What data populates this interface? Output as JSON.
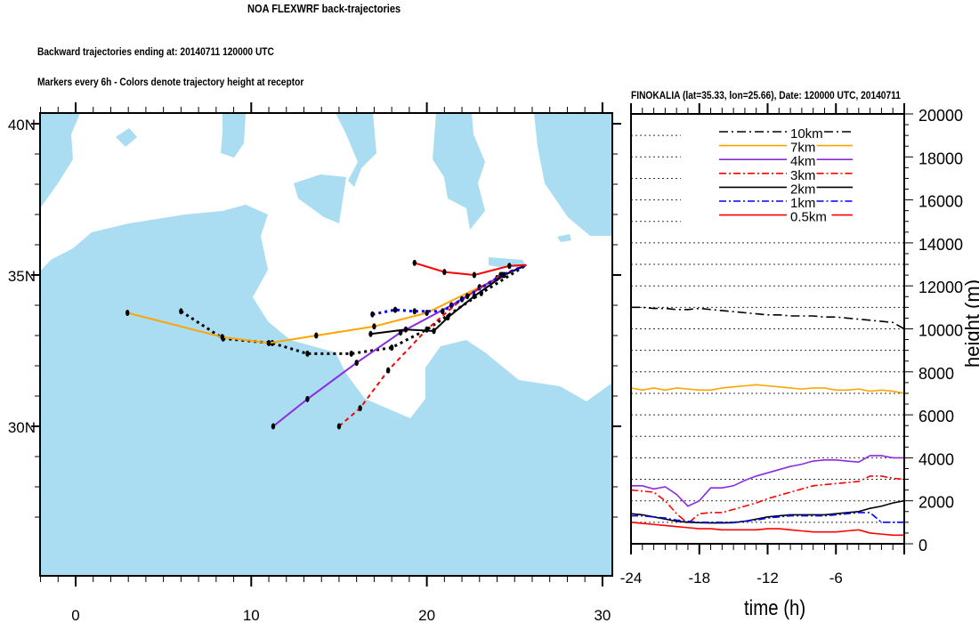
{
  "title": "NOA FLEXWRF back-trajectories",
  "subtitle1": "Backward trajectories ending at: 20140711  120000 UTC",
  "subtitle2": "Markers every 6h - Colors denote trajectory height at receptor",
  "chart_data": [
    {
      "type": "line",
      "name": "trajectory-map",
      "xlim": [
        -2,
        30.5
      ],
      "ylim": [
        26,
        40.3
      ],
      "x_ticks": [
        {
          "v": 0,
          "label": "0"
        },
        {
          "v": 10,
          "label": "10"
        },
        {
          "v": 20,
          "label": "20"
        },
        {
          "v": 30,
          "label": "30"
        }
      ],
      "y_ticks": [
        {
          "v": 40,
          "label": "40N"
        },
        {
          "v": 35,
          "label": "35N"
        },
        {
          "v": 30,
          "label": "30N"
        }
      ],
      "receptor": [
        25.66,
        35.33
      ],
      "series": [
        {
          "name": "10km",
          "color": "#000000",
          "style": "dotted",
          "points": [
            [
              6.0,
              33.8
            ],
            [
              8.4,
              32.9
            ],
            [
              11.2,
              32.75
            ],
            [
              13.2,
              32.4
            ],
            [
              15.7,
              32.4
            ],
            [
              18.0,
              32.6
            ],
            [
              20.0,
              33.2
            ],
            [
              23.1,
              34.4
            ],
            [
              25.66,
              35.33
            ]
          ]
        },
        {
          "name": "7km",
          "color": "#ffa500",
          "style": "solid",
          "points": [
            [
              2.95,
              33.75
            ],
            [
              8.35,
              32.95
            ],
            [
              11.0,
              32.75
            ],
            [
              13.7,
              33.0
            ],
            [
              17.0,
              33.3
            ],
            [
              20.0,
              33.75
            ],
            [
              23.0,
              34.6
            ],
            [
              25.66,
              35.33
            ]
          ]
        },
        {
          "name": "4km",
          "color": "#8a2be2",
          "style": "solid",
          "points": [
            [
              11.25,
              30.0
            ],
            [
              13.2,
              30.9
            ],
            [
              16.0,
              32.1
            ],
            [
              18.5,
              33.1
            ],
            [
              21.4,
              34.0
            ],
            [
              24.0,
              34.9
            ],
            [
              25.66,
              35.33
            ]
          ]
        },
        {
          "name": "3km",
          "color": "#ff0000",
          "style": "dashed",
          "points": [
            [
              15.0,
              30.0
            ],
            [
              16.2,
              30.6
            ],
            [
              17.8,
              31.85
            ],
            [
              20.0,
              33.2
            ],
            [
              22.0,
              34.2
            ],
            [
              24.2,
              35.0
            ],
            [
              25.66,
              35.33
            ]
          ]
        },
        {
          "name": "2km",
          "color": "#000000",
          "style": "solid",
          "points": [
            [
              16.8,
              33.05
            ],
            [
              18.8,
              33.2
            ],
            [
              20.4,
              33.15
            ],
            [
              21.2,
              33.6
            ],
            [
              22.7,
              34.3
            ],
            [
              24.4,
              35.0
            ],
            [
              25.66,
              35.33
            ]
          ]
        },
        {
          "name": "1km",
          "color": "#0000ff",
          "style": "dotted",
          "points": [
            [
              16.9,
              33.7
            ],
            [
              18.2,
              33.85
            ],
            [
              19.3,
              33.8
            ],
            [
              20.9,
              33.8
            ],
            [
              22.3,
              34.3
            ],
            [
              24.3,
              35.0
            ],
            [
              25.66,
              35.33
            ]
          ]
        },
        {
          "name": "0.5km",
          "color": "#ff0000",
          "style": "solid",
          "points": [
            [
              19.3,
              35.4
            ],
            [
              21.0,
              35.1
            ],
            [
              22.7,
              35.0
            ],
            [
              24.7,
              35.3
            ],
            [
              25.66,
              35.33
            ]
          ]
        }
      ]
    },
    {
      "type": "line",
      "name": "height-timeseries",
      "title": "FINOKALIA (lat=35.33,  lon=25.66), Date: 120000 UTC, 20140711",
      "xlabel": "time (h)",
      "ylabel": "height (m)",
      "xlim": [
        -24,
        0
      ],
      "ylim": [
        0,
        20000
      ],
      "x_ticks": [
        {
          "v": -24,
          "label": "-24"
        },
        {
          "v": -18,
          "label": "-18"
        },
        {
          "v": -12,
          "label": "-12"
        },
        {
          "v": -6,
          "label": "-6"
        }
      ],
      "y_ticks": [
        {
          "v": 0,
          "label": "0"
        },
        {
          "v": 2000,
          "label": "2000"
        },
        {
          "v": 4000,
          "label": "4000"
        },
        {
          "v": 6000,
          "label": "6000"
        },
        {
          "v": 8000,
          "label": "8000"
        },
        {
          "v": 10000,
          "label": "10000"
        },
        {
          "v": 12000,
          "label": "12000"
        },
        {
          "v": 14000,
          "label": "14000"
        },
        {
          "v": 16000,
          "label": "16000"
        },
        {
          "v": 18000,
          "label": "18000"
        },
        {
          "v": 20000,
          "label": "20000"
        }
      ],
      "grid_step": 1000,
      "legend_position": "top-right",
      "x": [
        -24,
        -23,
        -22,
        -21,
        -20,
        -19,
        -18,
        -17,
        -16,
        -15,
        -14,
        -13,
        -12,
        -11,
        -10,
        -9,
        -8,
        -7,
        -6,
        -5,
        -4,
        -3,
        -2,
        -1,
        0
      ],
      "series": [
        {
          "name": "10km",
          "label": "10km",
          "color": "#000000",
          "dash": "10 4 2 4",
          "values": [
            11000,
            11000,
            10950,
            10950,
            10900,
            10900,
            10950,
            10900,
            10850,
            10800,
            10750,
            10700,
            10650,
            10650,
            10600,
            10600,
            10600,
            10550,
            10550,
            10500,
            10450,
            10400,
            10350,
            10300,
            10000
          ]
        },
        {
          "name": "7km",
          "label": "7km",
          "color": "#ffa500",
          "dash": "",
          "values": [
            7250,
            7150,
            7250,
            7150,
            7250,
            7200,
            7150,
            7150,
            7250,
            7300,
            7350,
            7400,
            7350,
            7300,
            7250,
            7200,
            7250,
            7250,
            7150,
            7150,
            7200,
            7100,
            7150,
            7100,
            7000
          ]
        },
        {
          "name": "4km",
          "label": "4km",
          "color": "#8a2be2",
          "dash": "",
          "values": [
            2700,
            2700,
            2550,
            2650,
            2300,
            1750,
            2000,
            2600,
            2600,
            2700,
            2950,
            3150,
            3300,
            3450,
            3600,
            3700,
            3850,
            3900,
            3900,
            3850,
            3800,
            4100,
            4100,
            4000,
            4000
          ]
        },
        {
          "name": "3km",
          "label": "3km",
          "color": "#ff0000",
          "dash": "8 3 2 3",
          "values": [
            2500,
            2450,
            2400,
            2000,
            1400,
            950,
            1400,
            1450,
            1450,
            1600,
            1750,
            1900,
            2100,
            2250,
            2400,
            2550,
            2700,
            2750,
            2800,
            2850,
            2900,
            3150,
            3150,
            3050,
            3000
          ]
        },
        {
          "name": "2km",
          "label": "2km",
          "color": "#000000",
          "dash": "",
          "values": [
            1400,
            1350,
            1250,
            1150,
            1050,
            1000,
            980,
            970,
            970,
            980,
            1050,
            1150,
            1250,
            1300,
            1350,
            1350,
            1350,
            1350,
            1400,
            1450,
            1500,
            1650,
            1750,
            1900,
            2000
          ]
        },
        {
          "name": "1km",
          "label": "1km",
          "color": "#0000ff",
          "dash": "8 3 2 3",
          "values": [
            1300,
            1300,
            1250,
            1200,
            1100,
            1050,
            1000,
            1000,
            1000,
            1000,
            1050,
            1100,
            1200,
            1250,
            1300,
            1300,
            1300,
            1300,
            1350,
            1400,
            1450,
            1450,
            1000,
            1000,
            1000
          ]
        },
        {
          "name": "0.5km",
          "label": "0.5km",
          "color": "#ff0000",
          "dash": "",
          "values": [
            1000,
            950,
            900,
            850,
            800,
            750,
            700,
            700,
            650,
            650,
            650,
            650,
            700,
            700,
            650,
            600,
            550,
            550,
            550,
            600,
            650,
            500,
            450,
            400,
            400
          ]
        }
      ]
    }
  ]
}
